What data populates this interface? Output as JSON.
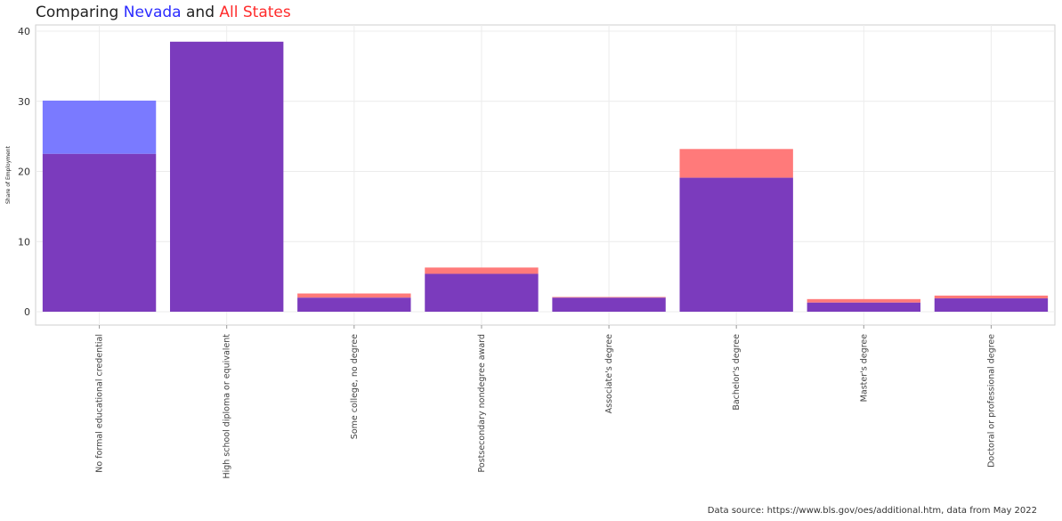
{
  "title": {
    "prefix": "Comparing ",
    "series_a": "Nevada",
    "middle": " and ",
    "series_b": "All States"
  },
  "source": "Data source: https://www.bls.gov/oes/additional.htm, data from May 2022",
  "colors": {
    "nevada": "#7a7aff",
    "all_states": "#ff7a7a",
    "overlap": "#7b3bbd",
    "title_nevada": "#2b2bff",
    "title_all_states": "#ff2b2b"
  },
  "chart_data": {
    "type": "bar",
    "ylabel": "Share of Employment",
    "ylim": [
      0,
      40
    ],
    "yticks": [
      0,
      10,
      20,
      30,
      40
    ],
    "grid": true,
    "categories": [
      "No formal educational credential",
      "High school diploma or equivalent",
      "Some college, no degree",
      "Postsecondary nondegree award",
      "Associate's degree",
      "Bachelor's degree",
      "Master's degree",
      "Doctoral or professional degree"
    ],
    "series": [
      {
        "name": "Nevada",
        "values": [
          30.1,
          38.5,
          2.0,
          5.4,
          2.0,
          19.1,
          1.3,
          1.9
        ]
      },
      {
        "name": "All States",
        "values": [
          22.5,
          38.5,
          2.6,
          6.3,
          2.1,
          23.2,
          1.8,
          2.3
        ]
      }
    ]
  }
}
